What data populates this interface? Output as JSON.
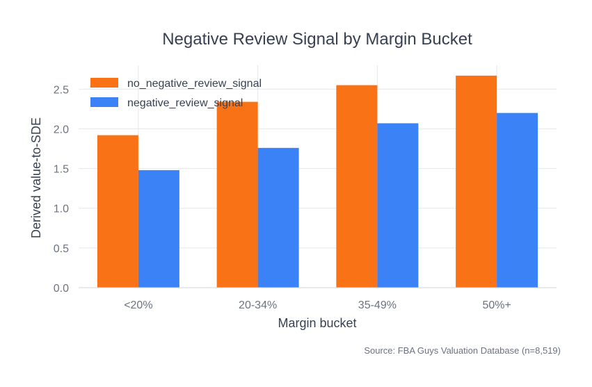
{
  "chart_data": {
    "type": "bar",
    "title": "Negative Review Signal by Margin Bucket",
    "xlabel": "Margin bucket",
    "ylabel": "Derived value-to-SDE",
    "categories": [
      "<20%",
      "20-34%",
      "35-49%",
      "50%+"
    ],
    "series": [
      {
        "name": "no_negative_review_signal",
        "values": [
          1.92,
          2.34,
          2.55,
          2.67
        ],
        "color": "#f97316"
      },
      {
        "name": "negative_review_signal",
        "values": [
          1.48,
          1.76,
          2.07,
          2.2
        ],
        "color": "#3b82f6"
      }
    ],
    "ylim": [
      0,
      2.8
    ],
    "yticks": [
      "0.0",
      "0.5",
      "1.0",
      "1.5",
      "2.0",
      "2.5"
    ],
    "grid": true,
    "legend_position": "top-left",
    "source": "Source: FBA Guys Valuation Database (n=8,519)"
  }
}
